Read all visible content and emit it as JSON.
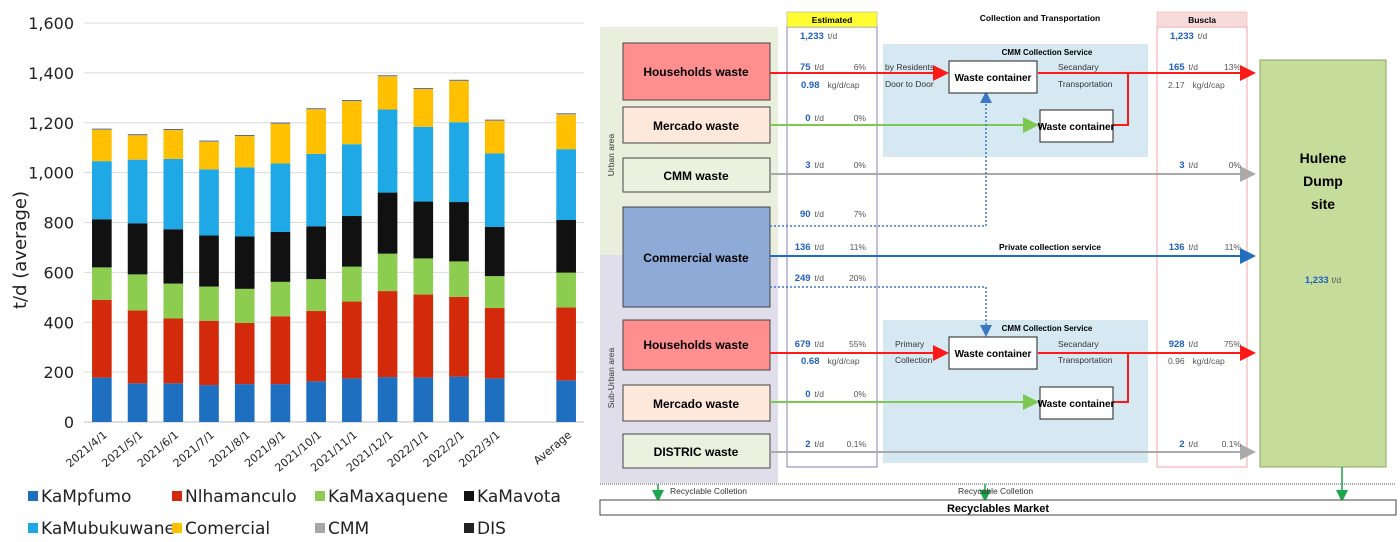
{
  "chart_data": {
    "type": "bar",
    "stacked": true,
    "ylabel": "t/d (average)",
    "ylim": [
      0,
      1600
    ],
    "yticks": [
      "0",
      "200",
      "400",
      "600",
      "800",
      "1,000",
      "1,200",
      "1,400",
      "1,600"
    ],
    "categories": [
      "2021/4/1",
      "2021/5/1",
      "2021/6/1",
      "2021/7/1",
      "2021/8/1",
      "2021/9/1",
      "2021/10/1",
      "2021/11/1",
      "2021/12/1",
      "2022/1/1",
      "2022/2/1",
      "2022/3/1",
      "Average"
    ],
    "gap_before_last": true,
    "grid": true,
    "legend_position": "bottom",
    "series": [
      {
        "name": "KaMpfumo",
        "color": "#1f6fc0",
        "values": [
          178,
          155,
          155,
          148,
          152,
          152,
          163,
          175,
          180,
          178,
          182,
          175,
          167
        ]
      },
      {
        "name": "Nlhamanculo",
        "color": "#d42a0c",
        "values": [
          312,
          292,
          260,
          258,
          245,
          272,
          282,
          308,
          345,
          333,
          320,
          282,
          292
        ]
      },
      {
        "name": "KaMaxaquene",
        "color": "#8ccc4e",
        "values": [
          130,
          145,
          140,
          137,
          137,
          138,
          128,
          140,
          150,
          145,
          142,
          128,
          140
        ]
      },
      {
        "name": "KaMavota",
        "color": "#111111",
        "values": [
          193,
          205,
          218,
          205,
          210,
          200,
          212,
          203,
          245,
          228,
          238,
          197,
          211
        ]
      },
      {
        "name": "KaMubukuwane",
        "color": "#1ea8e6",
        "values": [
          233,
          255,
          282,
          265,
          277,
          275,
          290,
          288,
          333,
          300,
          320,
          295,
          284
        ]
      },
      {
        "name": "Comercial",
        "color": "#ffc000",
        "values": [
          125,
          97,
          115,
          110,
          125,
          158,
          178,
          172,
          132,
          150,
          165,
          130,
          138
        ]
      },
      {
        "name": "CMM",
        "color": "#a6a6a6",
        "values": [
          3,
          3,
          3,
          3,
          3,
          3,
          3,
          3,
          3,
          3,
          3,
          3,
          3
        ]
      },
      {
        "name": "DIS",
        "color": "#222222",
        "values": [
          2,
          2,
          2,
          2,
          2,
          2,
          2,
          2,
          2,
          2,
          2,
          2,
          2
        ]
      }
    ]
  },
  "flow": {
    "headers": {
      "estimated": "Estimated",
      "collection": "Collection and Transportation",
      "buscla": "Buscla"
    },
    "total_est": "1,233",
    "total_buscla": "1,233",
    "unit_td": "t/d",
    "unit_kg": "kg/d/cap",
    "zones": {
      "urban": "Urban area",
      "suburban": "Sub-Urban area"
    },
    "sources": {
      "households_u": "Households waste",
      "mercado_u": "Mercado waste",
      "cmm": "CMM waste",
      "commercial": "Commercial waste",
      "households_s": "Households waste",
      "mercado_s": "Mercado waste",
      "distric": "DISTRIC waste"
    },
    "est": {
      "hh_u_v": "75",
      "hh_u_p": "6%",
      "hh_u_kg": "0.98",
      "mer_u_v": "0",
      "mer_u_p": "0%",
      "cmm_v": "3",
      "cmm_p": "0%",
      "com1_v": "90",
      "com1_p": "7%",
      "com2_v": "136",
      "com2_p": "11%",
      "com3_v": "249",
      "com3_p": "20%",
      "hh_s_v": "679",
      "hh_s_p": "55%",
      "hh_s_kg": "0.68",
      "mer_s_v": "0",
      "mer_s_p": "0%",
      "dis_v": "2",
      "dis_p": "0.1%"
    },
    "bus": {
      "hh_u_v": "165",
      "hh_u_p": "13%",
      "hh_u_kg": "2.17",
      "cmm_v": "3",
      "cmm_p": "0%",
      "com_v": "136",
      "com_p": "11%",
      "hh_s_v": "928",
      "hh_s_p": "75%",
      "hh_s_kg": "0.96",
      "dis_v": "2",
      "dis_p": "0.1%"
    },
    "labels": {
      "cmm_service": "CMM Collection Service",
      "waste_container": "Waste container",
      "by_residents": "by Residents",
      "door_to_door": "Door to Door",
      "secandary": "Secandary",
      "transportation": "Transportation",
      "primary": "Primary",
      "collection": "Collection",
      "private": "Private collection service",
      "recyclable": "Recyclable Colletion",
      "recyclable2": "Recycable Colletion",
      "market": "Recyclables Market"
    },
    "dump": {
      "line1": "Hulene",
      "line2": "Dump",
      "line3": "site",
      "total": "1,233"
    }
  }
}
